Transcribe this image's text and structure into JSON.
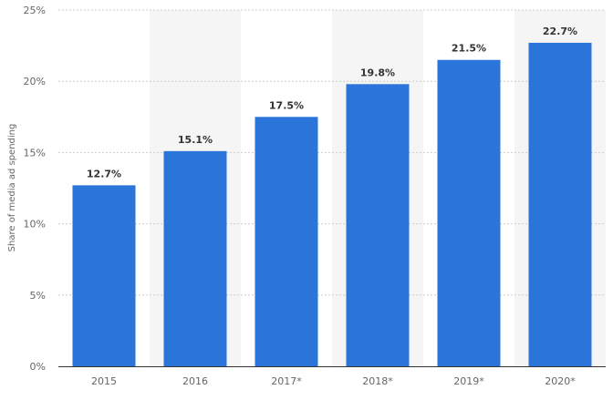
{
  "chart_data": {
    "type": "bar",
    "categories": [
      "2015",
      "2016",
      "2017*",
      "2018*",
      "2019*",
      "2020*"
    ],
    "values": [
      12.7,
      15.1,
      17.5,
      19.8,
      21.5,
      22.7
    ],
    "value_labels": [
      "12.7%",
      "15.1%",
      "17.5%",
      "19.8%",
      "21.5%",
      "22.7%"
    ],
    "title": "",
    "xlabel": "",
    "ylabel": "Share of media ad spending",
    "ylim": [
      0,
      25
    ],
    "yticks": [
      0,
      5,
      10,
      15,
      20,
      25
    ],
    "ytick_labels": [
      "0%",
      "5%",
      "10%",
      "15%",
      "20%",
      "25%"
    ],
    "grid": true,
    "bar_color": "#2b74d9",
    "band_color": "#f5f5f5"
  }
}
